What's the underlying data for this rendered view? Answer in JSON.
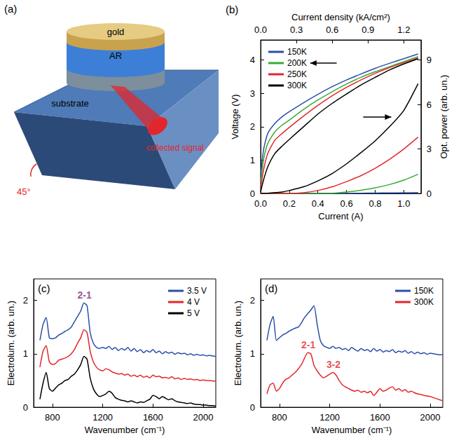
{
  "diagram": {
    "label": "(a)",
    "texts": {
      "top": "gold",
      "layer": "AR",
      "substrate": "substrate",
      "angle": "45°",
      "signal": "collected signal"
    }
  },
  "chart_data": [
    {
      "type": "line",
      "label": "(b)",
      "x_label": "Current (A)",
      "x2_label": "Current density (kA/cm²)",
      "y_label": "Voltage (V)",
      "y2_label": "Opt. power (arb. un.)",
      "grid": false,
      "legend": "upper left",
      "x": [
        0,
        0.02,
        0.05,
        0.1,
        0.15,
        0.2,
        0.3,
        0.4,
        0.5,
        0.6,
        0.7,
        0.8,
        0.9,
        1.0,
        1.1
      ],
      "xlim": [
        0,
        1.12
      ],
      "xticks": [
        {
          "value": 0,
          "label": "0.0"
        },
        {
          "value": 0.2,
          "label": "0.2"
        },
        {
          "value": 0.4,
          "label": "0.4"
        },
        {
          "value": 0.6,
          "label": "0.6"
        },
        {
          "value": 0.8,
          "label": "0.8"
        },
        {
          "value": 1.0,
          "label": "1.0"
        }
      ],
      "x2lim": [
        0,
        1.344
      ],
      "x2ticks": [
        {
          "value": 0,
          "label": "0.0"
        },
        0.3,
        0.6,
        0.9,
        1.2
      ],
      "ylim": [
        0,
        4.6
      ],
      "yticks": [
        0,
        1,
        2,
        3,
        4
      ],
      "y2lim": [
        0,
        10.35
      ],
      "y2ticks": [
        0,
        3,
        6,
        9
      ],
      "series": [
        {
          "name": "150K",
          "color": "#2a4fa8",
          "values": [
            0.5,
            1.3,
            1.8,
            2.1,
            2.3,
            2.45,
            2.72,
            2.97,
            3.2,
            3.4,
            3.58,
            3.75,
            3.9,
            4.04,
            4.18
          ]
        },
        {
          "name": "200K",
          "color": "#3aaa35",
          "values": [
            0.3,
            1.0,
            1.5,
            1.85,
            2.05,
            2.2,
            2.52,
            2.8,
            3.05,
            3.28,
            3.48,
            3.65,
            3.8,
            3.95,
            4.1
          ]
        },
        {
          "name": "250K",
          "color": "#e3262b",
          "values": [
            0.15,
            0.7,
            1.2,
            1.6,
            1.8,
            1.98,
            2.32,
            2.64,
            2.93,
            3.18,
            3.4,
            3.6,
            3.77,
            3.92,
            4.06
          ]
        },
        {
          "name": "300K",
          "color": "#000000",
          "values": [
            0.05,
            0.4,
            0.8,
            1.2,
            1.42,
            1.62,
            2.0,
            2.38,
            2.7,
            2.98,
            3.25,
            3.48,
            3.7,
            3.88,
            4.04
          ]
        },
        {
          "name": "150K",
          "color": "#2a4fa8",
          "axis": "y2",
          "values": [
            0,
            0,
            0,
            0,
            0,
            0,
            0,
            0,
            0,
            0,
            0.02,
            0.03,
            0.04,
            0.05,
            0.06
          ]
        },
        {
          "name": "200K",
          "color": "#3aaa35",
          "axis": "y2",
          "values": [
            0,
            0,
            0,
            0,
            0,
            0,
            0,
            0,
            0.02,
            0.1,
            0.22,
            0.38,
            0.6,
            0.9,
            1.3
          ]
        },
        {
          "name": "250K",
          "color": "#e3262b",
          "axis": "y2",
          "values": [
            0,
            0,
            0,
            0,
            0,
            0,
            0.05,
            0.2,
            0.45,
            0.8,
            1.2,
            1.7,
            2.3,
            3.0,
            3.8
          ]
        },
        {
          "name": "300K",
          "color": "#000000",
          "axis": "y2",
          "values": [
            0,
            0,
            0.02,
            0.06,
            0.1,
            0.2,
            0.45,
            0.85,
            1.35,
            2.0,
            2.75,
            3.55,
            4.5,
            5.6,
            7.4
          ]
        }
      ]
    },
    {
      "type": "line",
      "label": "(c)",
      "x_label": "Wavenumber (cm⁻¹)",
      "y_label": "Electrolum. (arb. un.)",
      "grid": false,
      "legend": "upper right",
      "x": [
        700,
        725,
        750,
        775,
        800,
        825,
        850,
        875,
        900,
        925,
        950,
        975,
        1000,
        1025,
        1050,
        1075,
        1100,
        1125,
        1150,
        1175,
        1200,
        1225,
        1250,
        1275,
        1300,
        1325,
        1350,
        1375,
        1400,
        1425,
        1450,
        1475,
        1500,
        1525,
        1550,
        1575,
        1600,
        1625,
        1650,
        1675,
        1700,
        1725,
        1750,
        1775,
        1800,
        1825,
        1850,
        1875,
        1900,
        1925,
        1950,
        1975,
        2000,
        2025,
        2050,
        2075,
        2100
      ],
      "xlim": [
        650,
        2100
      ],
      "xticks": [
        800,
        1200,
        1600,
        2000
      ],
      "ylim": [
        0,
        2.4
      ],
      "yticks": [
        0,
        1,
        2
      ],
      "annotations": [
        {
          "text": "2-1",
          "x": 1055,
          "y": 2.1,
          "color": "#7a2a7a"
        }
      ],
      "series": [
        {
          "name": "3.5 V",
          "color": "#2a4fa8",
          "values": [
            1.25,
            1.55,
            1.68,
            1.3,
            1.28,
            1.3,
            1.35,
            1.38,
            1.42,
            1.45,
            1.5,
            1.6,
            1.7,
            1.8,
            1.95,
            1.9,
            1.4,
            1.2,
            1.12,
            1.1,
            1.12,
            1.1,
            1.14,
            1.08,
            1.12,
            1.06,
            1.1,
            1.07,
            1.12,
            1.05,
            1.1,
            1.04,
            1.08,
            1.02,
            1.06,
            1.03,
            1.08,
            1.02,
            1.05,
            1.0,
            1.04,
            1.01,
            1.03,
            0.99,
            1.02,
            1.0,
            1.01,
            0.98,
            1.0,
            0.97,
            0.99,
            0.97,
            0.98,
            0.96,
            0.97,
            0.96,
            0.95
          ]
        },
        {
          "name": "4 V",
          "color": "#e3262b",
          "values": [
            0.75,
            1.05,
            1.15,
            0.85,
            0.8,
            0.82,
            0.88,
            0.9,
            0.92,
            0.95,
            1.0,
            1.08,
            1.2,
            1.3,
            1.45,
            1.4,
            1.05,
            0.85,
            0.75,
            0.7,
            0.68,
            0.72,
            0.7,
            0.66,
            0.64,
            0.62,
            0.63,
            0.6,
            0.62,
            0.58,
            0.6,
            0.57,
            0.6,
            0.56,
            0.58,
            0.55,
            0.6,
            0.57,
            0.58,
            0.55,
            0.56,
            0.54,
            0.57,
            0.53,
            0.55,
            0.52,
            0.54,
            0.52,
            0.53,
            0.51,
            0.52,
            0.5,
            0.51,
            0.5,
            0.5,
            0.49,
            0.49
          ]
        },
        {
          "name": "5 V",
          "color": "#000000",
          "values": [
            0.15,
            0.45,
            0.65,
            0.35,
            0.3,
            0.36,
            0.42,
            0.45,
            0.5,
            0.52,
            0.58,
            0.62,
            0.7,
            0.8,
            0.95,
            0.9,
            0.55,
            0.35,
            0.25,
            0.2,
            0.22,
            0.25,
            0.3,
            0.26,
            0.18,
            0.15,
            0.13,
            0.12,
            0.1,
            0.12,
            0.1,
            0.08,
            0.1,
            0.09,
            0.12,
            0.15,
            0.22,
            0.2,
            0.16,
            0.2,
            0.17,
            0.14,
            0.16,
            0.12,
            0.1,
            0.09,
            0.08,
            0.07,
            0.08,
            0.06,
            0.05,
            0.05,
            0.04,
            0.04,
            0.03,
            0.03,
            0.02
          ]
        }
      ]
    },
    {
      "type": "line",
      "label": "(d)",
      "x_label": "Wavenumber (cm⁻¹)",
      "y_label": "Electrolum. (arb. un.)",
      "grid": false,
      "legend": "upper right",
      "x": [
        700,
        725,
        750,
        775,
        800,
        825,
        850,
        875,
        900,
        925,
        950,
        975,
        1000,
        1025,
        1050,
        1075,
        1100,
        1125,
        1150,
        1175,
        1200,
        1225,
        1250,
        1275,
        1300,
        1325,
        1350,
        1375,
        1400,
        1425,
        1450,
        1475,
        1500,
        1525,
        1550,
        1575,
        1600,
        1625,
        1650,
        1675,
        1700,
        1725,
        1750,
        1775,
        1800,
        1825,
        1850,
        1875,
        1900,
        1925,
        1950,
        1975,
        2000,
        2025,
        2050,
        2075,
        2100
      ],
      "xlim": [
        650,
        2100
      ],
      "xticks": [
        800,
        1200,
        1600,
        2000
      ],
      "ylim": [
        0,
        2.4
      ],
      "yticks": [
        0,
        1,
        2
      ],
      "annotations": [
        {
          "text": "2-1",
          "x": 1030,
          "y": 1.17,
          "color": "#e3262b"
        },
        {
          "text": "3-2",
          "x": 1230,
          "y": 0.8,
          "color": "#e3262b"
        }
      ],
      "series": [
        {
          "name": "150K",
          "color": "#2a4fa8",
          "values": [
            1.25,
            1.55,
            1.7,
            1.25,
            1.3,
            1.35,
            1.38,
            1.42,
            1.45,
            1.48,
            1.5,
            1.58,
            1.68,
            1.75,
            1.82,
            1.9,
            1.55,
            1.25,
            1.15,
            1.12,
            1.1,
            1.14,
            1.1,
            1.12,
            1.08,
            1.1,
            1.06,
            1.12,
            1.08,
            1.05,
            1.1,
            1.06,
            1.08,
            1.04,
            1.1,
            1.05,
            1.08,
            1.03,
            1.06,
            1.04,
            1.08,
            1.02,
            1.05,
            1.03,
            1.06,
            1.01,
            1.04,
            1.0,
            1.03,
            1.0,
            1.02,
            0.99,
            1.01,
            1.0,
            0.99,
            0.98,
            0.98
          ]
        },
        {
          "name": "300K",
          "color": "#e3262b",
          "values": [
            0.25,
            0.42,
            0.45,
            0.3,
            0.35,
            0.45,
            0.52,
            0.55,
            0.6,
            0.65,
            0.72,
            0.8,
            0.92,
            1.02,
            1.0,
            0.78,
            0.68,
            0.6,
            0.55,
            0.58,
            0.62,
            0.65,
            0.6,
            0.5,
            0.42,
            0.38,
            0.35,
            0.32,
            0.3,
            0.32,
            0.28,
            0.3,
            0.27,
            0.3,
            0.22,
            0.28,
            0.35,
            0.3,
            0.32,
            0.36,
            0.38,
            0.32,
            0.35,
            0.3,
            0.33,
            0.28,
            0.3,
            0.27,
            0.25,
            0.24,
            0.22,
            0.21,
            0.2,
            0.18,
            0.16,
            0.14,
            0.12
          ]
        }
      ]
    }
  ]
}
